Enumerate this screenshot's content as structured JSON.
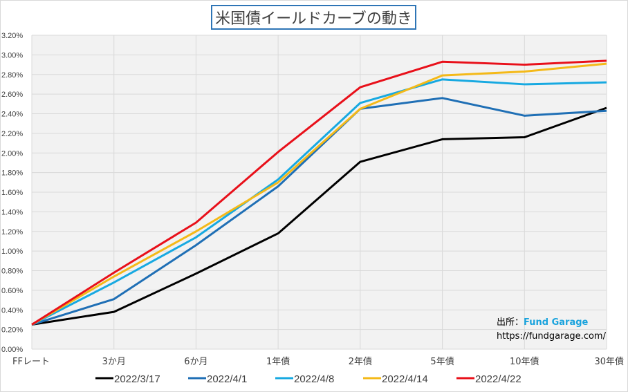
{
  "chart_data": {
    "type": "line",
    "title": "米国債イールドカーブの動き",
    "categories": [
      "FFレート",
      "3か月",
      "6か月",
      "1年債",
      "2年債",
      "5年債",
      "10年債",
      "30年債"
    ],
    "ylim": [
      0,
      3.2
    ],
    "ytick_step": 0.2,
    "yticks": [
      "0.00%",
      "0.20%",
      "0.40%",
      "0.60%",
      "0.80%",
      "1.00%",
      "1.20%",
      "1.40%",
      "1.60%",
      "1.80%",
      "2.00%",
      "2.20%",
      "2.40%",
      "2.60%",
      "2.80%",
      "3.00%",
      "3.20%"
    ],
    "grid": true,
    "legend_position": "bottom",
    "series": [
      {
        "name": "2022/3/17",
        "color": "#000000",
        "values": [
          0.25,
          0.38,
          0.77,
          1.18,
          1.91,
          2.14,
          2.16,
          2.46
        ]
      },
      {
        "name": "2022/4/1",
        "color": "#1f6fb5",
        "values": [
          0.25,
          0.51,
          1.06,
          1.66,
          2.45,
          2.56,
          2.38,
          2.43
        ]
      },
      {
        "name": "2022/4/8",
        "color": "#17a9e1",
        "values": [
          0.25,
          0.68,
          1.14,
          1.73,
          2.51,
          2.75,
          2.7,
          2.72
        ]
      },
      {
        "name": "2022/4/14",
        "color": "#f4b918",
        "values": [
          0.25,
          0.74,
          1.2,
          1.7,
          2.45,
          2.79,
          2.83,
          2.91
        ]
      },
      {
        "name": "2022/4/22",
        "color": "#e8101a",
        "values": [
          0.25,
          0.78,
          1.29,
          2.01,
          2.67,
          2.93,
          2.9,
          2.94
        ]
      }
    ]
  },
  "source": {
    "label": "出所：",
    "brand": "Fund Garage",
    "url": "https://fundgarage.com/"
  }
}
